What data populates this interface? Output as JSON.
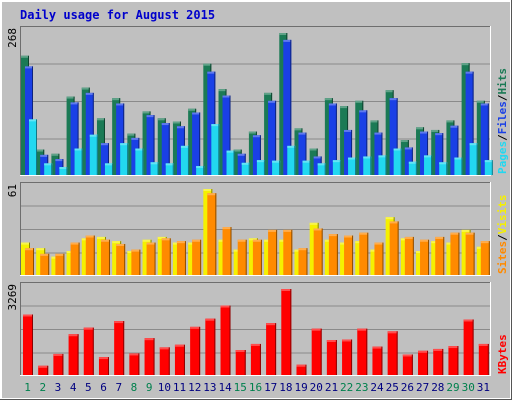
{
  "chart_data": {
    "type": "bar",
    "title": "Daily usage for August 2015",
    "colors": {
      "background": "#c0c0c0",
      "border": "#6e6e6e",
      "title": "#0000cc",
      "hits": "#1b7a55",
      "files": "#1a40e6",
      "pages": "#22d8f0",
      "visits": "#f5f000",
      "sites": "#ff8a00",
      "kbf": "#ff0000",
      "weekday_label": "#000080",
      "weekend_label": "#00804d"
    },
    "categories": [
      "1",
      "2",
      "3",
      "4",
      "5",
      "6",
      "7",
      "8",
      "9",
      "10",
      "11",
      "12",
      "13",
      "14",
      "15",
      "16",
      "17",
      "18",
      "19",
      "20",
      "21",
      "22",
      "23",
      "24",
      "25",
      "26",
      "27",
      "28",
      "29",
      "30",
      "31"
    ],
    "weekend_days": [
      "1",
      "2",
      "8",
      "9",
      "15",
      "16",
      "22",
      "23",
      "29",
      "30"
    ],
    "panels": [
      {
        "id": "hits-files-pages",
        "max_label": "268",
        "max": 268,
        "legend": [
          {
            "text": "Hits",
            "color_key": "hits"
          },
          {
            "text": "/",
            "color_key": "separator"
          },
          {
            "text": "Files",
            "color_key": "files"
          },
          {
            "text": "/",
            "color_key": "separator"
          },
          {
            "text": "Pages",
            "color_key": "pages"
          }
        ],
        "series": [
          {
            "name": "Hits",
            "color_key": "hits",
            "values": [
              225,
              48,
              40,
              148,
              165,
              107,
              145,
              78,
              120,
              107,
              101,
              125,
              210,
              162,
              48,
              82,
              155,
              268,
              88,
              50,
              145,
              130,
              140,
              103,
              160,
              66,
              90,
              85,
              103,
              211,
              140
            ]
          },
          {
            "name": "Files",
            "color_key": "files",
            "values": [
              205,
              38,
              30,
              137,
              155,
              60,
              135,
              70,
              113,
              98,
              92,
              118,
              195,
              150,
              40,
              75,
              140,
              255,
              80,
              35,
              135,
              85,
              122,
              80,
              145,
              52,
              82,
              79,
              93,
              195,
              135
            ]
          },
          {
            "name": "Pages",
            "color_key": "pages",
            "values": [
              105,
              22,
              15,
              50,
              76,
              22,
              60,
              50,
              24,
              22,
              55,
              17,
              96,
              46,
              23,
              28,
              27,
              55,
              27,
              22,
              28,
              33,
              35,
              37,
              50,
              25,
              37,
              24,
              33,
              60,
              28
            ]
          }
        ]
      },
      {
        "id": "visits-sites",
        "max_label": "61",
        "max": 61,
        "legend": [
          {
            "text": "Visits",
            "color_key": "visits"
          },
          {
            "text": "/",
            "color_key": "separator"
          },
          {
            "text": "Sites",
            "color_key": "sites"
          }
        ],
        "series": [
          {
            "name": "Visits",
            "color_key": "visits",
            "values": [
              23,
              19,
              13,
              17,
              26,
              27,
              24,
              17,
              25,
              27,
              23,
              23,
              61,
              25,
              18,
              26,
              25,
              25,
              18,
              37,
              25,
              23,
              24,
              18,
              41,
              26,
              17,
              24,
              23,
              32,
              20
            ]
          },
          {
            "name": "Sites",
            "color_key": "sites",
            "values": [
              19,
              15,
              15,
              23,
              28,
              25,
              22,
              18,
              23,
              26,
              24,
              25,
              58,
              34,
              25,
              25,
              32,
              32,
              19,
              33,
              29,
              28,
              30,
              23,
              38,
              27,
              25,
              27,
              30,
              30,
              24
            ]
          }
        ]
      },
      {
        "id": "kbf",
        "max_label": "3269",
        "max": 3269,
        "legend": [
          {
            "text": "KBytes",
            "color_key": "kbf"
          }
        ],
        "series": [
          {
            "name": "KBytes",
            "color_key": "kbf",
            "values": [
              2300,
              350,
              800,
              1550,
              1800,
              680,
              2050,
              820,
              1400,
              1050,
              1150,
              1830,
              2140,
              2640,
              950,
              1180,
              1970,
              3269,
              390,
              1760,
              1330,
              1350,
              1760,
              1080,
              1660,
              780,
              920,
              990,
              1100,
              2110,
              1180
            ]
          }
        ]
      }
    ]
  }
}
